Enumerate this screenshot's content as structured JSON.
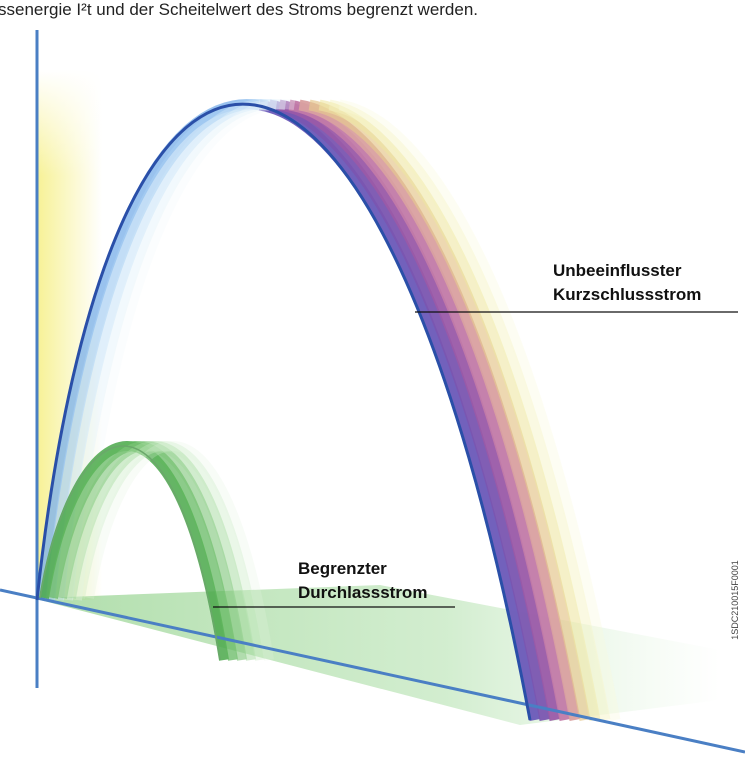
{
  "header": {
    "text": "ssenergie I²t und der Scheitelwert des Stroms begrenzt werden."
  },
  "labels": [
    {
      "lines": [
        "Unbeeinflusster",
        "Kurzschlussstrom"
      ]
    },
    {
      "lines": [
        "Begrenzter",
        "Durchlassstrom"
      ]
    }
  ],
  "code": "1SDC210015F0001"
}
